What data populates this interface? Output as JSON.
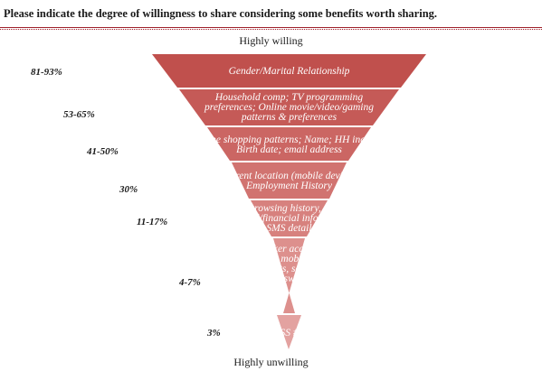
{
  "title": "Please indicate the degree of willingness to share considering some benefits worth sharing.",
  "top_label": "Highly willing",
  "bottom_label": "Highly unwilling",
  "colors": {
    "accent_rule": "#a0222c",
    "band_colors": [
      "#c0504d",
      "#c55a57",
      "#cb6663",
      "#d17370",
      "#d7817e",
      "#dd908d",
      "#e3a2a0"
    ]
  },
  "levels": [
    {
      "percent": "81-93%",
      "text": "Gender/Marital Relationship"
    },
    {
      "percent": "53-65%",
      "text": "Household comp; TV programming preferences; Online movie/video/gaming patterns & preferences"
    },
    {
      "percent": "41-50%",
      "text": "Online shopping patterns; Name; HH income; Birth date; email address"
    },
    {
      "percent": "30%",
      "text": "Current location (mobile device); Employment History"
    },
    {
      "percent": "11-17%",
      "text": "Web browsing history, cell #, medical/financial info, mobile SMS detail"
    },
    {
      "percent": "4-7%",
      "text": "Digital locker access, mobile call history, mobile contacts, email contacts, social network password"
    },
    {
      "percent": "3%",
      "text": "SS #"
    }
  ]
}
